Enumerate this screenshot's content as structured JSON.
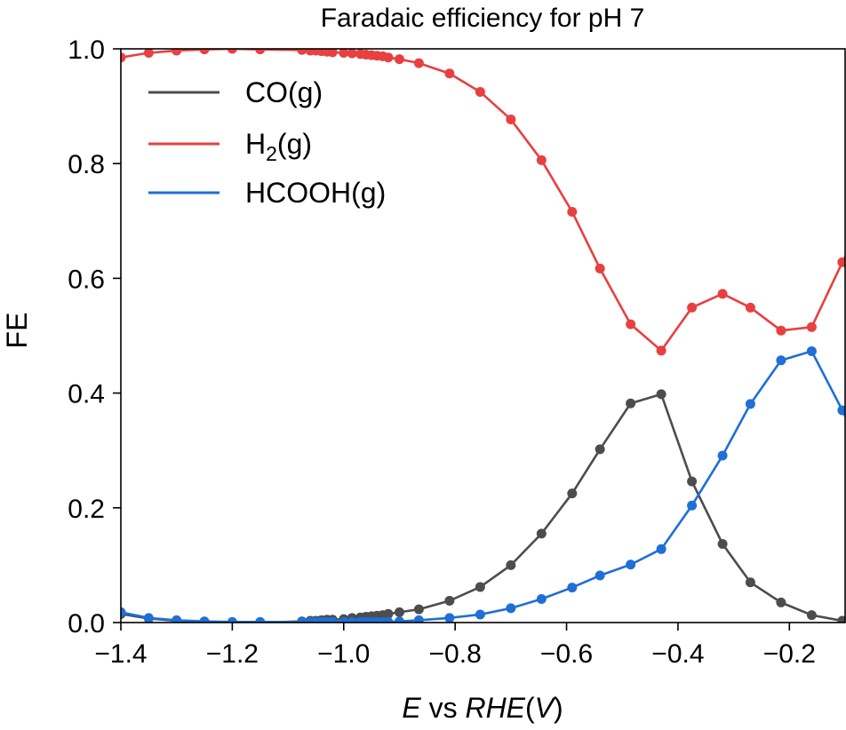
{
  "chart_data": {
    "type": "line",
    "title": "Faradaic efficiency for pH 7",
    "xlabel_parts": [
      {
        "text": "E",
        "italic": true
      },
      {
        "text": " vs ",
        "italic": false
      },
      {
        "text": "RHE",
        "italic": true
      },
      {
        "text": "(",
        "italic": false
      },
      {
        "text": "V",
        "italic": true
      },
      {
        "text": ")",
        "italic": false
      }
    ],
    "ylabel": "FE",
    "xlim": [
      -1.4,
      -0.1
    ],
    "ylim": [
      0.0,
      1.0
    ],
    "xticks": [
      {
        "value": -1.4,
        "label": "−1.4"
      },
      {
        "value": -1.2,
        "label": "−1.2"
      },
      {
        "value": -1.0,
        "label": "−1.0"
      },
      {
        "value": -0.8,
        "label": "−0.8"
      },
      {
        "value": -0.6,
        "label": "−0.6"
      },
      {
        "value": -0.4,
        "label": "−0.4"
      },
      {
        "value": -0.2,
        "label": "−0.2"
      }
    ],
    "yticks": [
      {
        "value": 0.0,
        "label": "0.0"
      },
      {
        "value": 0.2,
        "label": "0.2"
      },
      {
        "value": 0.4,
        "label": "0.4"
      },
      {
        "value": 0.6,
        "label": "0.6"
      },
      {
        "value": 0.8,
        "label": "0.8"
      },
      {
        "value": 1.0,
        "label": "1.0"
      }
    ],
    "grid": false,
    "legend_position": "top-left",
    "series": [
      {
        "name": "CO(g)",
        "legend_main": "CO(g)",
        "legend_sub": "",
        "legend_tail": "",
        "color": "#4d4d4d",
        "x": [
          -1.4,
          -1.35,
          -1.3,
          -1.25,
          -1.2,
          -1.15,
          -1.075,
          -1.06,
          -1.05,
          -1.04,
          -1.03,
          -1.02,
          -1.0,
          -0.985,
          -0.97,
          -0.96,
          -0.95,
          -0.94,
          -0.93,
          -0.92,
          -0.9,
          -0.865,
          -0.81,
          -0.755,
          -0.7,
          -0.645,
          -0.59,
          -0.54,
          -0.485,
          -0.43,
          -0.375,
          -0.32,
          -0.27,
          -0.215,
          -0.16,
          -0.105,
          -0.08
        ],
        "y": [
          0.015,
          0.007,
          0.003,
          0.001,
          0.0,
          0.0,
          0.002,
          0.003,
          0.003,
          0.004,
          0.005,
          0.005,
          0.006,
          0.008,
          0.009,
          0.01,
          0.011,
          0.012,
          0.013,
          0.015,
          0.018,
          0.023,
          0.038,
          0.062,
          0.1,
          0.155,
          0.225,
          0.302,
          0.382,
          0.398,
          0.246,
          0.137,
          0.07,
          0.035,
          0.013,
          0.003,
          0.0
        ]
      },
      {
        "name": "H2(g)",
        "legend_main": "H",
        "legend_sub": "2",
        "legend_tail": "(g)",
        "color": "#e84040",
        "x": [
          -1.4,
          -1.35,
          -1.3,
          -1.25,
          -1.2,
          -1.15,
          -1.075,
          -1.06,
          -1.05,
          -1.04,
          -1.03,
          -1.02,
          -1.0,
          -0.985,
          -0.97,
          -0.96,
          -0.95,
          -0.94,
          -0.93,
          -0.92,
          -0.9,
          -0.865,
          -0.81,
          -0.755,
          -0.7,
          -0.645,
          -0.59,
          -0.54,
          -0.485,
          -0.43,
          -0.375,
          -0.32,
          -0.27,
          -0.215,
          -0.16,
          -0.105,
          -0.08
        ],
        "y": [
          0.985,
          0.993,
          0.997,
          0.999,
          1.0,
          0.999,
          0.998,
          0.997,
          0.997,
          0.996,
          0.995,
          0.994,
          0.993,
          0.992,
          0.991,
          0.99,
          0.989,
          0.988,
          0.987,
          0.985,
          0.982,
          0.975,
          0.957,
          0.925,
          0.877,
          0.806,
          0.716,
          0.617,
          0.52,
          0.474,
          0.549,
          0.573,
          0.549,
          0.509,
          0.515,
          0.628,
          0.675
        ]
      },
      {
        "name": "HCOOH(g)",
        "legend_main": "HCOOH(g)",
        "legend_sub": "",
        "legend_tail": "",
        "color": "#1f6fd6",
        "x": [
          -1.4,
          -1.35,
          -1.3,
          -1.25,
          -1.2,
          -1.15,
          -1.075,
          -1.06,
          -1.05,
          -1.04,
          -1.03,
          -1.02,
          -1.0,
          -0.985,
          -0.97,
          -0.96,
          -0.95,
          -0.94,
          -0.93,
          -0.92,
          -0.9,
          -0.865,
          -0.81,
          -0.755,
          -0.7,
          -0.645,
          -0.59,
          -0.54,
          -0.485,
          -0.43,
          -0.375,
          -0.32,
          -0.27,
          -0.215,
          -0.16,
          -0.105,
          -0.08
        ],
        "y": [
          0.018,
          0.008,
          0.004,
          0.002,
          0.001,
          0.001,
          0.001,
          0.001,
          0.001,
          0.001,
          0.001,
          0.001,
          0.001,
          0.001,
          0.001,
          0.001,
          0.001,
          0.001,
          0.001,
          0.001,
          0.002,
          0.004,
          0.008,
          0.014,
          0.025,
          0.041,
          0.061,
          0.082,
          0.101,
          0.128,
          0.204,
          0.291,
          0.381,
          0.457,
          0.473,
          0.37,
          0.32
        ]
      }
    ]
  }
}
